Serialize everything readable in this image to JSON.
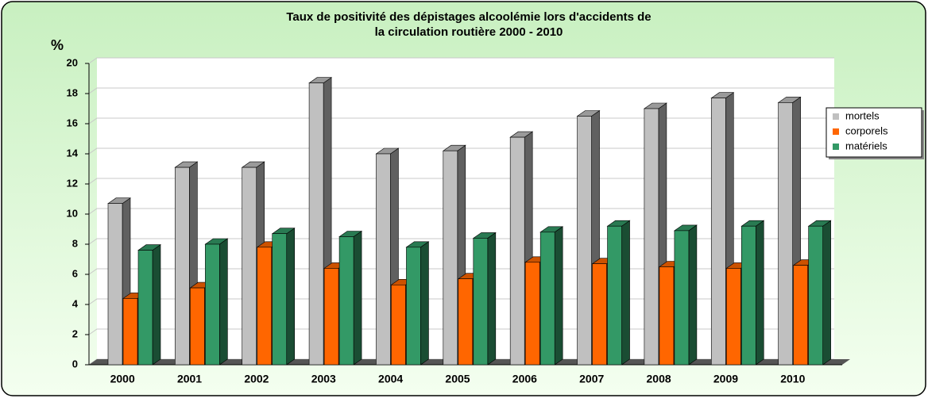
{
  "chart_data": {
    "type": "bar3d",
    "title": [
      "Taux de positivité des dépistages alcoolémie lors d'accidents de",
      "la circulation routière 2000 - 2010"
    ],
    "ylabel": "%",
    "categories": [
      "2000",
      "2001",
      "2002",
      "2003",
      "2004",
      "2005",
      "2006",
      "2007",
      "2008",
      "2009",
      "2010"
    ],
    "series": [
      {
        "name": "mortels",
        "color": "#c0c0c0",
        "values": [
          10.7,
          13.1,
          13.1,
          18.7,
          14.0,
          14.2,
          15.1,
          16.5,
          17.0,
          17.7,
          17.4
        ]
      },
      {
        "name": "corporels",
        "color": "#ff6600",
        "values": [
          4.4,
          5.1,
          7.8,
          6.4,
          5.3,
          5.7,
          6.8,
          6.7,
          6.5,
          6.4,
          6.6
        ]
      },
      {
        "name": "matériels",
        "color": "#339966",
        "values": [
          7.6,
          8.0,
          8.7,
          8.5,
          7.8,
          8.4,
          8.8,
          9.2,
          8.9,
          9.2,
          9.2
        ]
      }
    ],
    "ylim": [
      0,
      20
    ],
    "yticks": [
      0,
      2,
      4,
      6,
      8,
      10,
      12,
      14,
      16,
      18,
      20
    ],
    "grid": true,
    "legend": "right"
  }
}
